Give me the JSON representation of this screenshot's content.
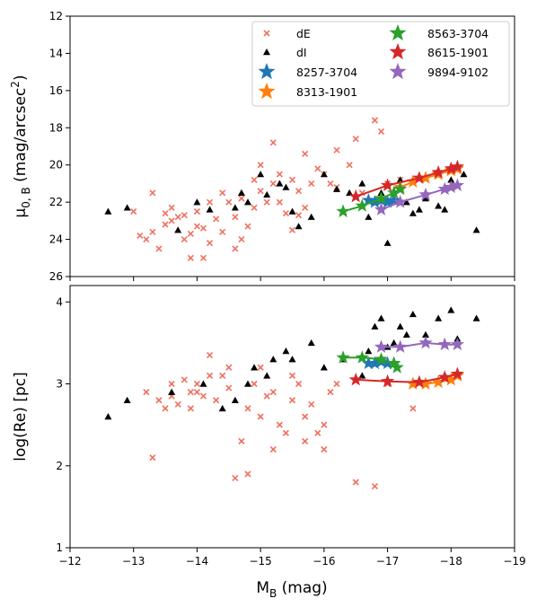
{
  "chart_data": [
    {
      "type": "scatter",
      "panel": "top",
      "ylabel_main": "μ",
      "ylabel_sub": "0, B",
      "ylabel_unit_open": " (mag/arcsec",
      "ylabel_unit_sup": "2",
      "ylabel_unit_close": ")",
      "xlim": [
        -12,
        -19
      ],
      "ylim": [
        26,
        12
      ],
      "yticks": [
        12,
        14,
        16,
        18,
        20,
        22,
        24,
        26
      ],
      "legend": {
        "placement": "top-right",
        "entries": [
          {
            "label": "dE",
            "marker": "x",
            "color": "#f07060"
          },
          {
            "label": "dI",
            "marker": "triangle",
            "color": "#000000"
          },
          {
            "label": "8257-3704",
            "marker": "star",
            "color": "#1f77b4"
          },
          {
            "label": "8313-1901",
            "marker": "star",
            "color": "#ff7f0e"
          },
          {
            "label": "8563-3704",
            "marker": "star",
            "color": "#2ca02c"
          },
          {
            "label": "8615-1901",
            "marker": "star",
            "color": "#d62728"
          },
          {
            "label": "9894-9102",
            "marker": "star",
            "color": "#9467bd"
          }
        ]
      },
      "dE": [
        [
          -13.0,
          22.5
        ],
        [
          -13.1,
          23.8
        ],
        [
          -13.2,
          24.0
        ],
        [
          -13.3,
          23.6
        ],
        [
          -13.3,
          21.5
        ],
        [
          -13.4,
          24.5
        ],
        [
          -13.5,
          22.6
        ],
        [
          -13.6,
          23.0
        ],
        [
          -13.7,
          22.8
        ],
        [
          -13.8,
          24.0
        ],
        [
          -13.9,
          25.0
        ],
        [
          -14.0,
          23.3
        ],
        [
          -14.0,
          22.5
        ],
        [
          -14.1,
          25.0
        ],
        [
          -14.2,
          24.2
        ],
        [
          -14.3,
          22.9
        ],
        [
          -14.4,
          23.6
        ],
        [
          -14.5,
          22.0
        ],
        [
          -14.6,
          24.5
        ],
        [
          -14.7,
          21.8
        ],
        [
          -14.8,
          23.3
        ],
        [
          -14.9,
          22.3
        ],
        [
          -15.0,
          20.0
        ],
        [
          -15.1,
          22.0
        ],
        [
          -15.2,
          21.0
        ],
        [
          -15.3,
          20.5
        ],
        [
          -15.4,
          22.6
        ],
        [
          -15.5,
          23.5
        ],
        [
          -15.6,
          21.4
        ],
        [
          -15.7,
          22.3
        ],
        [
          -15.8,
          21.0
        ],
        [
          -16.0,
          20.5
        ],
        [
          -16.2,
          21.2
        ],
        [
          -16.4,
          20.0
        ],
        [
          -16.6,
          21.5
        ],
        [
          -16.8,
          17.6
        ],
        [
          -16.9,
          18.2
        ],
        [
          -17.2,
          20.8
        ],
        [
          -17.6,
          21.8
        ],
        [
          -13.6,
          22.3
        ],
        [
          -13.9,
          23.7
        ],
        [
          -14.2,
          22.0
        ],
        [
          -14.7,
          24.0
        ],
        [
          -15.2,
          18.8
        ],
        [
          -15.7,
          19.4
        ],
        [
          -16.2,
          19.2
        ],
        [
          -14.4,
          21.5
        ],
        [
          -15.0,
          21.4
        ],
        [
          -15.5,
          20.8
        ],
        [
          -13.8,
          22.7
        ],
        [
          -14.1,
          23.4
        ],
        [
          -14.6,
          22.8
        ],
        [
          -15.3,
          22.0
        ],
        [
          -15.9,
          20.2
        ],
        [
          -16.1,
          21.0
        ],
        [
          -13.5,
          23.2
        ],
        [
          -14.9,
          20.8
        ],
        [
          -15.6,
          22.7
        ],
        [
          -16.5,
          18.6
        ],
        [
          -17.0,
          21.0
        ]
      ],
      "dI": [
        [
          -12.6,
          22.5
        ],
        [
          -12.9,
          22.3
        ],
        [
          -13.7,
          23.5
        ],
        [
          -14.0,
          22.0
        ],
        [
          -14.2,
          22.4
        ],
        [
          -14.6,
          22.3
        ],
        [
          -14.7,
          21.5
        ],
        [
          -15.0,
          20.5
        ],
        [
          -15.1,
          21.6
        ],
        [
          -15.3,
          21.0
        ],
        [
          -15.5,
          22.5
        ],
        [
          -15.6,
          23.3
        ],
        [
          -15.8,
          22.8
        ],
        [
          -16.0,
          20.5
        ],
        [
          -16.3,
          22.5
        ],
        [
          -16.6,
          21.0
        ],
        [
          -16.7,
          22.8
        ],
        [
          -16.9,
          21.5
        ],
        [
          -17.0,
          22.0
        ],
        [
          -17.2,
          20.8
        ],
        [
          -17.4,
          22.6
        ],
        [
          -17.5,
          22.4
        ],
        [
          -17.6,
          21.8
        ],
        [
          -17.8,
          22.2
        ],
        [
          -18.0,
          20.8
        ],
        [
          -18.2,
          20.5
        ],
        [
          -18.4,
          23.5
        ],
        [
          -17.0,
          24.2
        ],
        [
          -17.3,
          22.0
        ],
        [
          -16.4,
          21.5
        ],
        [
          -15.4,
          21.2
        ],
        [
          -14.8,
          22.0
        ],
        [
          -16.2,
          21.3
        ],
        [
          -17.9,
          22.4
        ]
      ],
      "tracks": [
        {
          "name": "8257-3704",
          "color": "#1f77b4",
          "points": [
            [
              -16.7,
              21.9
            ],
            [
              -16.8,
              22.0
            ],
            [
              -16.9,
              21.9
            ],
            [
              -17.0,
              22.0
            ],
            [
              -17.1,
              21.9
            ]
          ]
        },
        {
          "name": "8313-1901",
          "color": "#ff7f0e",
          "points": [
            [
              -17.2,
              21.2
            ],
            [
              -17.4,
              20.9
            ],
            [
              -17.6,
              20.7
            ],
            [
              -17.8,
              20.5
            ],
            [
              -18.0,
              20.3
            ],
            [
              -18.1,
              20.2
            ]
          ]
        },
        {
          "name": "8563-3704",
          "color": "#2ca02c",
          "points": [
            [
              -16.3,
              22.5
            ],
            [
              -16.6,
              22.2
            ],
            [
              -16.9,
              21.8
            ],
            [
              -17.1,
              21.5
            ],
            [
              -17.2,
              21.3
            ]
          ]
        },
        {
          "name": "8615-1901",
          "color": "#d62728",
          "points": [
            [
              -16.5,
              21.7
            ],
            [
              -17.0,
              21.1
            ],
            [
              -17.5,
              20.7
            ],
            [
              -17.8,
              20.4
            ],
            [
              -18.0,
              20.2
            ],
            [
              -18.1,
              20.1
            ]
          ]
        },
        {
          "name": "9894-9102",
          "color": "#9467bd",
          "points": [
            [
              -16.9,
              22.4
            ],
            [
              -17.2,
              22.0
            ],
            [
              -17.6,
              21.6
            ],
            [
              -17.9,
              21.3
            ],
            [
              -18.0,
              21.2
            ],
            [
              -18.1,
              21.1
            ]
          ]
        }
      ]
    },
    {
      "type": "scatter",
      "panel": "bottom",
      "ylabel": "log(Re) [pc]",
      "xlabel_main": "M",
      "xlabel_sub": "B",
      "xlabel_unit": " (mag)",
      "xlim": [
        -12,
        -19
      ],
      "ylim": [
        1,
        4.2
      ],
      "xticks": [
        -12,
        -13,
        -14,
        -15,
        -16,
        -17,
        -18,
        -19
      ],
      "xtick_labels": [
        "−12",
        "−13",
        "−14",
        "−15",
        "−16",
        "−17",
        "−18",
        "−19"
      ],
      "yticks": [
        1,
        2,
        3,
        4
      ],
      "dE": [
        [
          -13.2,
          2.9
        ],
        [
          -13.3,
          2.1
        ],
        [
          -13.4,
          2.8
        ],
        [
          -13.5,
          2.7
        ],
        [
          -13.6,
          3.0
        ],
        [
          -13.7,
          2.75
        ],
        [
          -13.8,
          3.05
        ],
        [
          -13.9,
          2.9
        ],
        [
          -14.0,
          3.0
        ],
        [
          -14.1,
          2.85
        ],
        [
          -14.2,
          3.35
        ],
        [
          -14.3,
          2.8
        ],
        [
          -14.4,
          3.1
        ],
        [
          -14.5,
          2.95
        ],
        [
          -14.6,
          1.85
        ],
        [
          -14.7,
          2.3
        ],
        [
          -14.8,
          2.7
        ],
        [
          -14.9,
          3.0
        ],
        [
          -15.0,
          2.6
        ],
        [
          -15.1,
          2.85
        ],
        [
          -15.2,
          2.9
        ],
        [
          -15.3,
          2.5
        ],
        [
          -15.4,
          2.4
        ],
        [
          -15.5,
          2.8
        ],
        [
          -15.6,
          3.0
        ],
        [
          -15.7,
          2.6
        ],
        [
          -15.8,
          2.75
        ],
        [
          -15.9,
          2.4
        ],
        [
          -16.0,
          2.5
        ],
        [
          -16.1,
          2.9
        ],
        [
          -16.2,
          3.0
        ],
        [
          -16.5,
          1.8
        ],
        [
          -16.8,
          1.75
        ],
        [
          -17.0,
          3.0
        ],
        [
          -17.4,
          2.7
        ],
        [
          -14.2,
          3.1
        ],
        [
          -13.9,
          2.7
        ],
        [
          -14.5,
          3.2
        ],
        [
          -15.0,
          3.2
        ],
        [
          -15.5,
          3.1
        ],
        [
          -14.0,
          2.9
        ],
        [
          -13.6,
          2.85
        ],
        [
          -14.8,
          1.9
        ],
        [
          -15.2,
          2.2
        ],
        [
          -15.7,
          2.3
        ],
        [
          -16.0,
          2.2
        ]
      ],
      "dI": [
        [
          -12.6,
          2.6
        ],
        [
          -12.9,
          2.8
        ],
        [
          -13.6,
          2.9
        ],
        [
          -14.1,
          3.0
        ],
        [
          -14.4,
          2.7
        ],
        [
          -14.6,
          2.8
        ],
        [
          -14.8,
          3.0
        ],
        [
          -14.9,
          3.2
        ],
        [
          -15.2,
          3.3
        ],
        [
          -15.4,
          3.4
        ],
        [
          -15.5,
          3.3
        ],
        [
          -15.8,
          3.5
        ],
        [
          -16.0,
          3.2
        ],
        [
          -16.3,
          3.3
        ],
        [
          -16.6,
          3.1
        ],
        [
          -16.7,
          3.4
        ],
        [
          -16.8,
          3.7
        ],
        [
          -16.9,
          3.8
        ],
        [
          -17.0,
          3.45
        ],
        [
          -17.1,
          3.5
        ],
        [
          -17.2,
          3.7
        ],
        [
          -17.4,
          3.85
        ],
        [
          -17.6,
          3.6
        ],
        [
          -17.8,
          3.8
        ],
        [
          -18.0,
          3.9
        ],
        [
          -18.1,
          3.55
        ],
        [
          -18.4,
          3.8
        ],
        [
          -17.3,
          3.6
        ],
        [
          -15.1,
          3.1
        ]
      ],
      "tracks": [
        {
          "name": "8257-3704",
          "color": "#1f77b4",
          "points": [
            [
              -16.7,
              3.25
            ],
            [
              -16.8,
              3.25
            ],
            [
              -16.9,
              3.27
            ],
            [
              -17.0,
              3.25
            ],
            [
              -17.1,
              3.25
            ]
          ]
        },
        {
          "name": "8313-1901",
          "color": "#ff7f0e",
          "points": [
            [
              -17.4,
              3.0
            ],
            [
              -17.6,
              3.0
            ],
            [
              -17.8,
              3.02
            ],
            [
              -18.0,
              3.05
            ],
            [
              -18.1,
              3.1
            ]
          ]
        },
        {
          "name": "8563-3704",
          "color": "#2ca02c",
          "points": [
            [
              -16.3,
              3.32
            ],
            [
              -16.6,
              3.32
            ],
            [
              -16.9,
              3.3
            ],
            [
              -17.1,
              3.25
            ],
            [
              -17.15,
              3.2
            ]
          ]
        },
        {
          "name": "8615-1901",
          "color": "#d62728",
          "points": [
            [
              -16.5,
              3.05
            ],
            [
              -17.0,
              3.03
            ],
            [
              -17.5,
              3.02
            ],
            [
              -17.9,
              3.08
            ],
            [
              -18.1,
              3.12
            ]
          ]
        },
        {
          "name": "9894-9102",
          "color": "#9467bd",
          "points": [
            [
              -16.9,
              3.45
            ],
            [
              -17.2,
              3.45
            ],
            [
              -17.6,
              3.5
            ],
            [
              -17.9,
              3.48
            ],
            [
              -18.1,
              3.48
            ]
          ]
        }
      ]
    }
  ]
}
